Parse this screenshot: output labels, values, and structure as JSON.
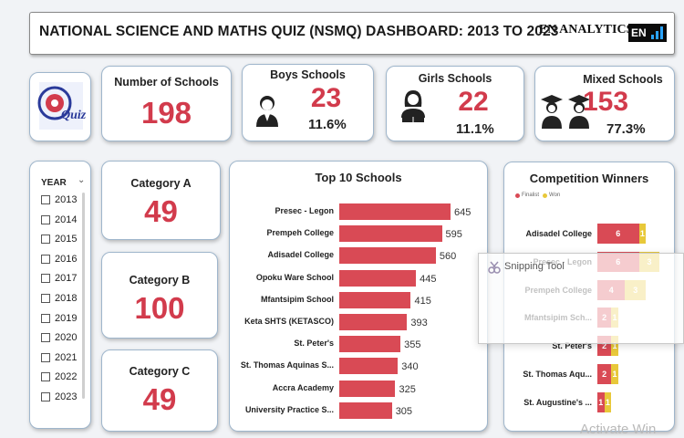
{
  "header": {
    "title": "NATIONAL SCIENCE AND MATHS QUIZ (NSMQ) DASHBOARD: 2013 TO 2023",
    "brand": "EN ANALYTICS",
    "brand_logo_text": "EN"
  },
  "logo": {
    "name": "nsmq-quiz-logo",
    "text": "Quiz"
  },
  "kpis": {
    "schools": {
      "label": "Number of Schools",
      "value": "198"
    },
    "boys": {
      "label": "Boys Schools",
      "value": "23",
      "pct": "11.6%"
    },
    "girls": {
      "label": "Girls Schools",
      "value": "22",
      "pct": "11.1%"
    },
    "mixed": {
      "label": "Mixed Schools",
      "value": "153",
      "pct": "77.3%"
    }
  },
  "categories": {
    "a": {
      "label": "Category A",
      "value": "49"
    },
    "b": {
      "label": "Category B",
      "value": "100"
    },
    "c": {
      "label": "Category C",
      "value": "49"
    }
  },
  "year_filter": {
    "label": "YEAR",
    "years": [
      "2013",
      "2014",
      "2015",
      "2016",
      "2017",
      "2018",
      "2019",
      "2020",
      "2021",
      "2022",
      "2023"
    ]
  },
  "colors": {
    "accent_red": "#d23b4c",
    "bar_red": "#d94a55",
    "won_yellow": "#e8c83a"
  },
  "chart_data": [
    {
      "type": "bar",
      "title": "Top 10 Schools",
      "orientation": "horizontal",
      "categories": [
        "Presec - Legon",
        "Prempeh College",
        "Adisadel College",
        "Opoku Ware School",
        "Mfantsipim School",
        "Keta SHTS (KETASCO)",
        "St. Peter's",
        "St. Thomas Aquinas S...",
        "Accra Academy",
        "University Practice S..."
      ],
      "values": [
        645,
        595,
        560,
        445,
        415,
        393,
        355,
        340,
        325,
        305
      ]
    },
    {
      "type": "bar",
      "title": "Competition Winners",
      "orientation": "horizontal",
      "stacked": true,
      "legend_position": "top-left",
      "categories": [
        "Adisadel College",
        "Presec - Legon",
        "Prempeh College",
        "Mfantsipim Sch...",
        "St. Peter's",
        "St. Thomas Aqu...",
        "St. Augustine's ..."
      ],
      "series": [
        {
          "name": "Finalist",
          "values": [
            6,
            6,
            4,
            2,
            2,
            2,
            1
          ]
        },
        {
          "name": "Won",
          "values": [
            1,
            3,
            3,
            1,
            1,
            1,
            1
          ]
        }
      ]
    }
  ],
  "overlay": {
    "snipping_tool": "Snipping Tool",
    "watermark": "Activate Win"
  }
}
